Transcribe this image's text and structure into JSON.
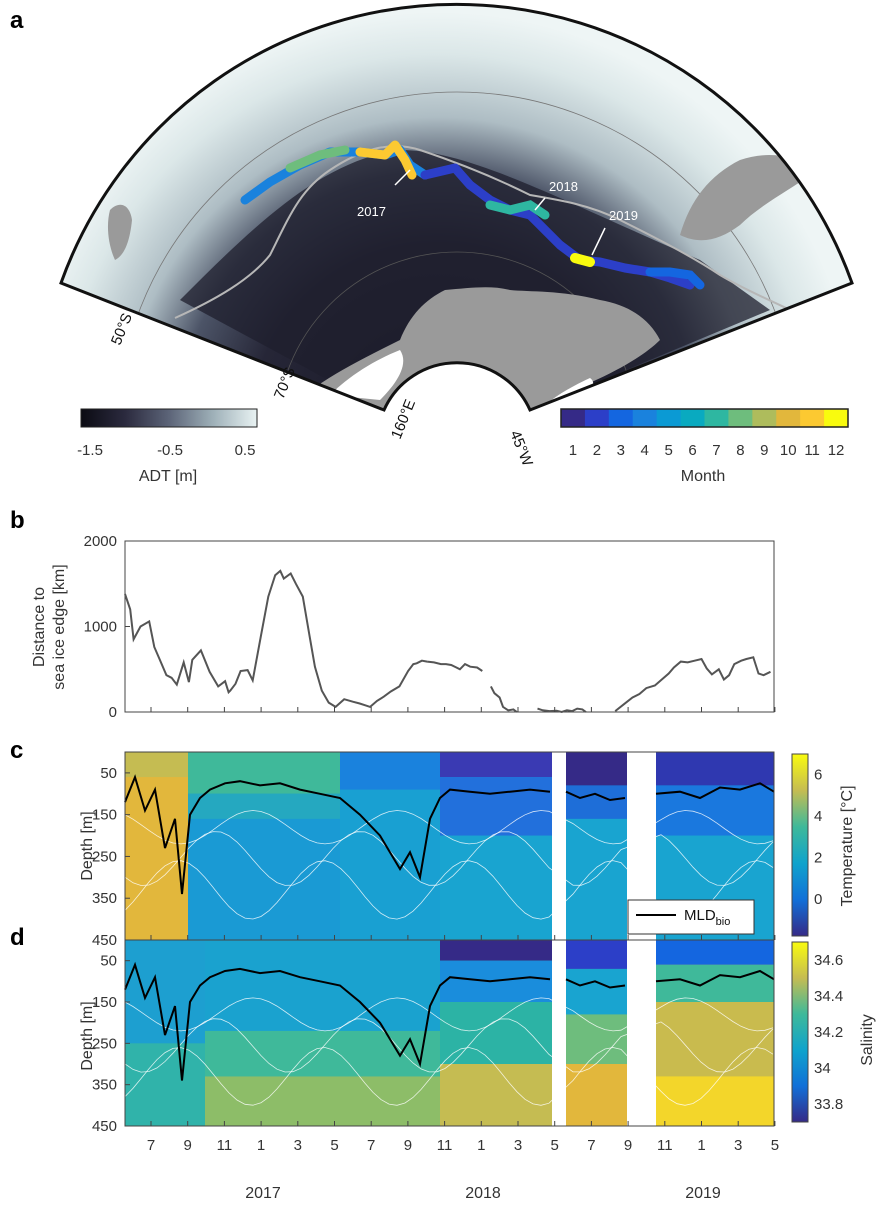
{
  "panels": {
    "a": "a",
    "b": "b",
    "c": "c",
    "d": "d"
  },
  "map": {
    "lat_labels": [
      "50°S",
      "70°S"
    ],
    "lon_labels": [
      "160°E",
      "45°W"
    ],
    "year_labels": [
      "2017",
      "2018",
      "2019"
    ],
    "adt_colorbar": {
      "label": "ADT [m]",
      "ticks": [
        "-1.5",
        "-0.5",
        "0.5"
      ],
      "range": [
        -1.5,
        0.5
      ]
    },
    "month_colorbar": {
      "label": "Month",
      "ticks": [
        "1",
        "2",
        "3",
        "4",
        "5",
        "6",
        "7",
        "8",
        "9",
        "10",
        "11",
        "12"
      ],
      "colors": [
        "#352a87",
        "#2c3fc8",
        "#1466e0",
        "#1a82dd",
        "#0b9ad4",
        "#09aac0",
        "#2eb7a1",
        "#6ebd7d",
        "#aebc5c",
        "#e2b73c",
        "#fcc931",
        "#f9fb0e"
      ]
    },
    "colors": {
      "land": "#9a9a9a",
      "ice_edge": "#b7b7b7",
      "frame": "#111111"
    }
  },
  "chart_data": [
    {
      "type": "line",
      "panel": "b",
      "ylabel": "Distance to sea ice edge [km]",
      "ylabel_lines": [
        "Distance to",
        "sea ice edge [km]"
      ],
      "ylim": [
        0,
        2000
      ],
      "yticks": [
        0,
        1000,
        2000
      ],
      "x_unit": "months since Jun 2017",
      "xlim": [
        5.6,
        28.3
      ],
      "color": "#555555",
      "series": [
        {
          "x": [
            5.6,
            5.9,
            6.1,
            6.5,
            7.0,
            7.3,
            7.6,
            8.0,
            8.3,
            8.6,
            9.0,
            9.3,
            9.5,
            10.0,
            10.5,
            11.0,
            11.4,
            11.6,
            11.7,
            12.0,
            12.3,
            12.7,
            13.0,
            13.5,
            13.9,
            14.3,
            14.6,
            14.8,
            15.2,
            15.5,
            15.9,
            16.3,
            16.6,
            17.0,
            17.4,
            17.8,
            18.3,
            18.8,
            19.2,
            19.5,
            19.8,
            20.2,
            20.6,
            21.0,
            21.5,
            22.0,
            22.3,
            22.5,
            22.8,
            23.1
          ],
          "y": [
            1380,
            1200,
            850,
            1000,
            1060,
            760,
            620,
            430,
            400,
            320,
            580,
            350,
            610,
            720,
            470,
            300,
            360,
            230,
            250,
            330,
            480,
            490,
            370,
            920,
            1350,
            1600,
            1650,
            1560,
            1620,
            1500,
            1350,
            880,
            530,
            250,
            110,
            60,
            150,
            120,
            100,
            80,
            60,
            130,
            180,
            240,
            300,
            480,
            560,
            570,
            600,
            590
          ]
        },
        {
          "x": [
            23.1,
            23.5,
            23.9,
            24.2,
            24.5,
            24.8,
            25.0,
            25.3,
            25.6,
            26.0,
            26.3
          ],
          "y": [
            590,
            580,
            560,
            560,
            550,
            520,
            500,
            560,
            530,
            520,
            480
          ]
        },
        {
          "x": [
            26.8,
            27.0,
            27.3,
            27.5,
            27.8,
            28.1,
            28.3
          ],
          "y": [
            300,
            220,
            170,
            60,
            20,
            30,
            0
          ]
        },
        {
          "x": [
            29.5,
            29.8,
            30.2,
            30.6,
            30.9,
            31.2,
            31.5,
            31.8,
            32.1,
            32.3
          ],
          "y": [
            40,
            20,
            10,
            15,
            0,
            20,
            10,
            40,
            30,
            0
          ]
        },
        {
          "x": [
            34.0,
            34.5,
            35.0,
            35.4,
            35.8,
            36.3,
            36.7,
            37.1,
            37.4,
            37.8,
            38.2,
            38.6,
            39.0,
            39.3,
            39.6,
            40.0,
            40.3,
            40.6,
            40.9,
            41.3,
            41.6,
            42.0,
            42.3,
            42.6,
            43.0
          ],
          "y": [
            10,
            90,
            170,
            210,
            280,
            310,
            380,
            450,
            520,
            590,
            580,
            600,
            620,
            510,
            440,
            500,
            380,
            430,
            560,
            600,
            620,
            640,
            450,
            430,
            470
          ]
        }
      ]
    },
    {
      "type": "heatmap",
      "panel": "c",
      "ylabel": "Depth [m]",
      "yticks": [
        50,
        150,
        250,
        350,
        450
      ],
      "ylim": [
        0,
        450
      ],
      "colorbar_label": "Temperature [°C]",
      "colorbar_ticks": [
        0,
        2,
        4,
        6
      ],
      "clim": [
        -1.8,
        7
      ],
      "legend_entry_main": "MLD",
      "legend_entry_sub": "bio",
      "line_color": "#000000"
    },
    {
      "type": "heatmap",
      "panel": "d",
      "ylabel": "Depth [m]",
      "yticks": [
        50,
        150,
        250,
        350,
        450
      ],
      "ylim": [
        0,
        450
      ],
      "colorbar_label": "Salinity",
      "colorbar_ticks": [
        "33.8",
        "34",
        "34.2",
        "34.4",
        "34.6"
      ],
      "clim": [
        33.7,
        34.7
      ],
      "line_color": "#000000"
    }
  ],
  "x_axis": {
    "month_ticks": [
      "7",
      "9",
      "11",
      "1",
      "3",
      "5",
      "7",
      "9",
      "11",
      "1",
      "3",
      "5",
      "7",
      "9",
      "11",
      "1",
      "3",
      "5"
    ],
    "year_labels": [
      "2017",
      "2018",
      "2019"
    ]
  }
}
